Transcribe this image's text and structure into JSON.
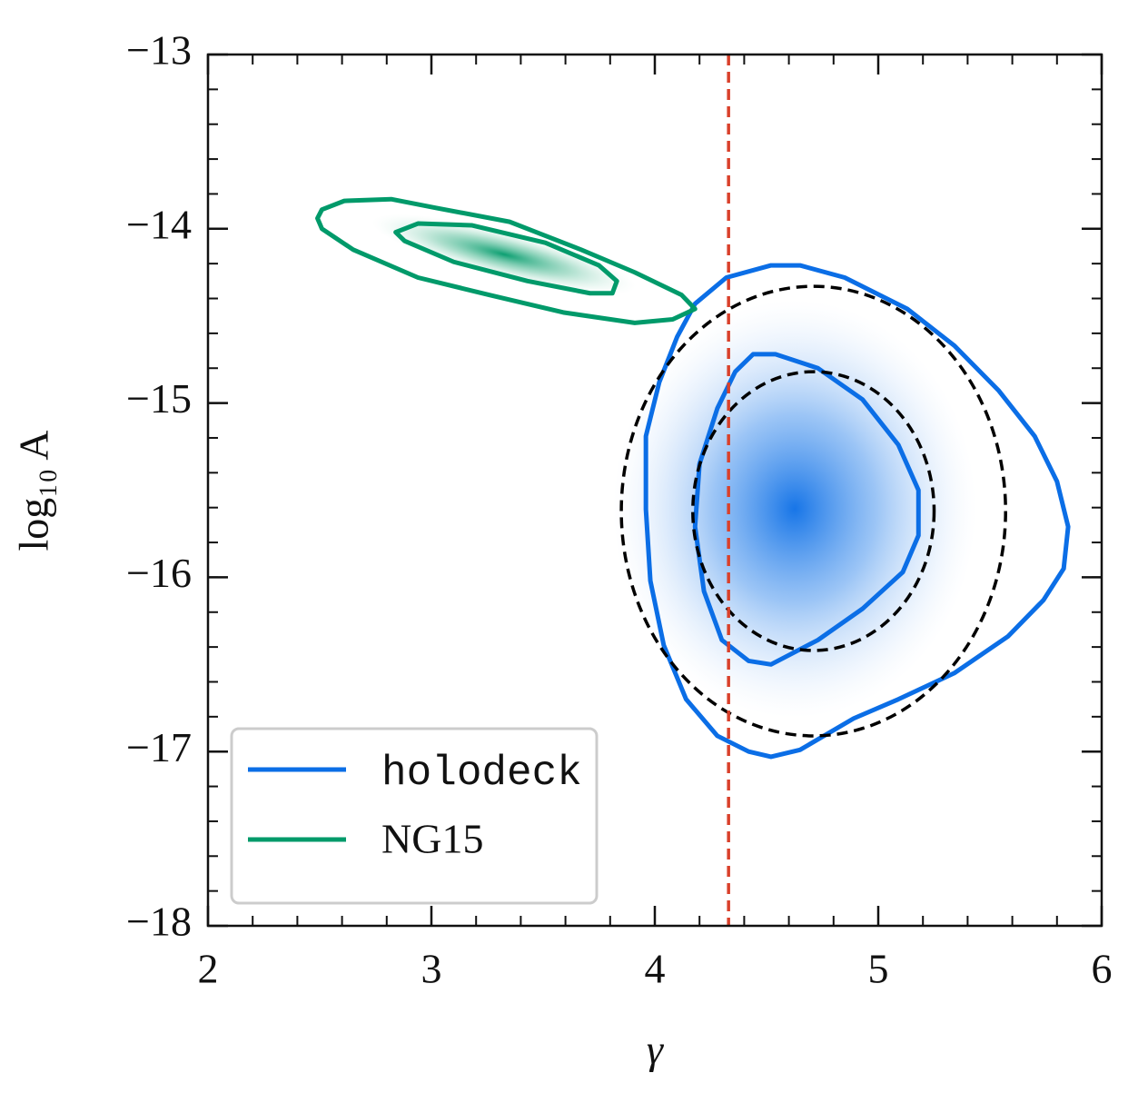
{
  "chart_data": {
    "type": "contour",
    "xlabel": "γ",
    "ylabel": "log₁₀ A",
    "xlim": [
      2,
      6
    ],
    "ylim": [
      -18,
      -13
    ],
    "xticks": [
      2,
      3,
      4,
      5,
      6
    ],
    "yticks": [
      {
        "value": -18,
        "label": "−18"
      },
      {
        "value": -17,
        "label": "−17"
      },
      {
        "value": -16,
        "label": "−16"
      },
      {
        "value": -15,
        "label": "−15"
      },
      {
        "value": -14,
        "label": "−14"
      },
      {
        "value": -13,
        "label": "−13"
      }
    ],
    "x_minor_step": 0.2,
    "y_minor_step": 0.2,
    "legend": "lower left",
    "series": [
      {
        "name": "holodeck",
        "color": "#0b6ee6",
        "font": "monospace",
        "contours": [
          {
            "x": [
              4.18,
              4.32,
              4.52,
              4.65,
              4.85,
              5.13,
              5.34,
              5.54,
              5.7,
              5.8,
              5.85,
              5.83,
              5.74,
              5.58,
              5.34,
              5.09,
              4.89,
              4.65,
              4.52,
              4.42,
              4.28,
              4.14,
              4.04,
              3.98,
              3.96,
              3.96,
              4.02,
              4.1
            ],
            "y": [
              -14.43,
              -14.28,
              -14.21,
              -14.21,
              -14.28,
              -14.46,
              -14.67,
              -14.93,
              -15.19,
              -15.45,
              -15.71,
              -15.95,
              -16.13,
              -16.34,
              -16.55,
              -16.7,
              -16.81,
              -16.99,
              -17.03,
              -17.0,
              -16.91,
              -16.7,
              -16.39,
              -16.02,
              -15.61,
              -15.19,
              -14.88,
              -14.62
            ]
          },
          {
            "x": [
              4.44,
              4.54,
              4.73,
              4.93,
              5.09,
              5.18,
              5.18,
              5.11,
              4.93,
              4.73,
              4.52,
              4.42,
              4.3,
              4.22,
              4.18,
              4.2,
              4.28,
              4.36
            ],
            "y": [
              -14.72,
              -14.72,
              -14.8,
              -14.98,
              -15.24,
              -15.5,
              -15.76,
              -15.97,
              -16.18,
              -16.36,
              -16.5,
              -16.48,
              -16.36,
              -16.08,
              -15.71,
              -15.35,
              -15.03,
              -14.82
            ]
          }
        ]
      },
      {
        "name": "NG15",
        "color": "#009a6a",
        "font": "serif",
        "contours": [
          {
            "x": [
              2.51,
              2.61,
              2.82,
              3.02,
              3.35,
              3.67,
              3.91,
              4.12,
              4.18,
              4.08,
              3.91,
              3.59,
              3.26,
              2.94,
              2.65,
              2.51,
              2.49
            ],
            "y": [
              -13.89,
              -13.84,
              -13.83,
              -13.88,
              -13.96,
              -14.12,
              -14.25,
              -14.38,
              -14.46,
              -14.52,
              -14.54,
              -14.48,
              -14.38,
              -14.28,
              -14.12,
              -14.0,
              -13.94
            ]
          },
          {
            "x": [
              2.84,
              2.94,
              3.18,
              3.51,
              3.75,
              3.83,
              3.81,
              3.71,
              3.43,
              3.1,
              2.88
            ],
            "y": [
              -14.02,
              -13.97,
              -13.98,
              -14.08,
              -14.21,
              -14.3,
              -14.37,
              -14.37,
              -14.3,
              -14.19,
              -14.07
            ]
          }
        ]
      }
    ],
    "ellipses": [
      {
        "cx": 4.71,
        "cy": -15.62,
        "rx": 0.86,
        "ry": 1.29,
        "color": "#000000"
      },
      {
        "cx": 4.71,
        "cy": -15.62,
        "rx": 0.54,
        "ry": 0.8,
        "color": "#000000"
      }
    ],
    "vline": {
      "x": 4.33,
      "color": "#d9412b"
    }
  }
}
